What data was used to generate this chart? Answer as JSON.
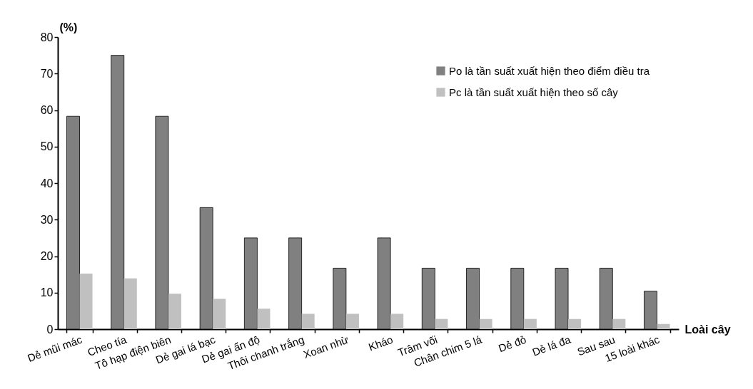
{
  "chart_data": {
    "type": "bar",
    "xlabel": "Loài cây",
    "ylabel": "(%)",
    "categories": [
      "Dẻ mũi mác",
      "Cheo tía",
      "Tô hạp điện biên",
      "Dẻ gai lá bạc",
      "Dẻ gai ấn độ",
      "Thôi chanh trắng",
      "Xoan nhừ",
      "Kháo",
      "Trâm vối",
      "Chân chim 5 lá",
      "Dẻ đỏ",
      "Dẻ lá đa",
      "Sau sau",
      "15 loài khác"
    ],
    "series": [
      {
        "name": "Po là tần suất xuất hiện theo điểm điều tra",
        "color": "#808080",
        "values": [
          58.3,
          75,
          58.3,
          33.3,
          25,
          25,
          16.7,
          25,
          16.7,
          16.7,
          16.7,
          16.7,
          16.7,
          10.4
        ]
      },
      {
        "name": "Pc là tần suất xuất hiện theo số cây",
        "color": "#c0c0c0",
        "values": [
          15.2,
          13.9,
          9.7,
          8.3,
          5.6,
          4.2,
          4.2,
          4.2,
          2.8,
          2.8,
          2.8,
          2.8,
          2.8,
          1.4
        ]
      }
    ],
    "ylim": [
      0,
      80
    ],
    "yticks": [
      0,
      10,
      20,
      30,
      40,
      50,
      60,
      70,
      80
    ],
    "grid": false,
    "legend": "top right"
  }
}
